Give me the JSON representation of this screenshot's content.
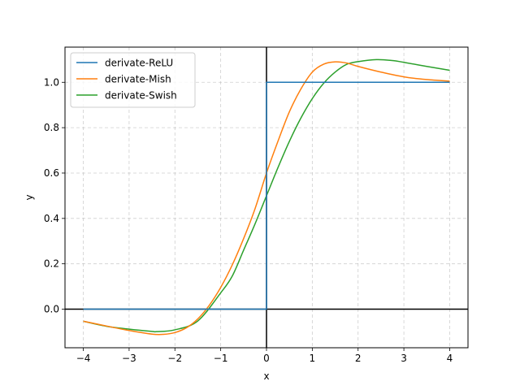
{
  "chart_data": {
    "type": "line",
    "title": "",
    "xlabel": "x",
    "ylabel": "y",
    "xlim": [
      -4.4,
      4.4
    ],
    "ylim": [
      -0.17,
      1.155
    ],
    "xticks": [
      -4,
      -3,
      -2,
      -1,
      0,
      1,
      2,
      3,
      4
    ],
    "xtick_labels": [
      "−4",
      "−3",
      "−2",
      "−1",
      "0",
      "1",
      "2",
      "3",
      "4"
    ],
    "yticks": [
      0.0,
      0.2,
      0.4,
      0.6,
      0.8,
      1.0
    ],
    "ytick_labels": [
      "0.0",
      "0.2",
      "0.4",
      "0.6",
      "0.8",
      "1.0"
    ],
    "grid": true,
    "legend_position": "upper-left",
    "reference_lines": {
      "x": 0,
      "y": 0,
      "color": "#000000"
    },
    "series": [
      {
        "name": "derivate-ReLU",
        "color": "#1f77b4",
        "x": [
          -4,
          0,
          0,
          4
        ],
        "y": [
          0,
          0,
          1,
          1
        ]
      },
      {
        "name": "derivate-Mish",
        "color": "#ff7f0e",
        "x": [
          -4.0,
          -3.5,
          -3.0,
          -2.5,
          -2.25,
          -2.0,
          -1.75,
          -1.5,
          -1.25,
          -1.0,
          -0.75,
          -0.5,
          -0.25,
          0.0,
          0.25,
          0.5,
          0.75,
          1.0,
          1.25,
          1.5,
          1.75,
          2.0,
          2.5,
          3.0,
          3.5,
          4.0
        ],
        "y": [
          -0.053,
          -0.074,
          -0.094,
          -0.11,
          -0.111,
          -0.103,
          -0.082,
          -0.043,
          0.017,
          0.096,
          0.194,
          0.311,
          0.443,
          0.6,
          0.74,
          0.87,
          0.97,
          1.045,
          1.08,
          1.09,
          1.085,
          1.07,
          1.045,
          1.024,
          1.012,
          1.005
        ]
      },
      {
        "name": "derivate-Swish",
        "color": "#2ca02c",
        "x": [
          -4.0,
          -3.5,
          -3.0,
          -2.5,
          -2.4,
          -2.0,
          -1.5,
          -1.0,
          -0.75,
          -0.5,
          -0.25,
          0.0,
          0.25,
          0.5,
          0.75,
          1.0,
          1.25,
          1.5,
          1.75,
          2.0,
          2.4,
          2.75,
          3.0,
          3.5,
          4.0
        ],
        "y": [
          -0.053,
          -0.075,
          -0.088,
          -0.098,
          -0.099,
          -0.091,
          -0.052,
          0.072,
          0.145,
          0.26,
          0.376,
          0.5,
          0.624,
          0.74,
          0.842,
          0.928,
          0.996,
          1.045,
          1.079,
          1.091,
          1.1,
          1.096,
          1.088,
          1.07,
          1.053
        ]
      }
    ]
  }
}
